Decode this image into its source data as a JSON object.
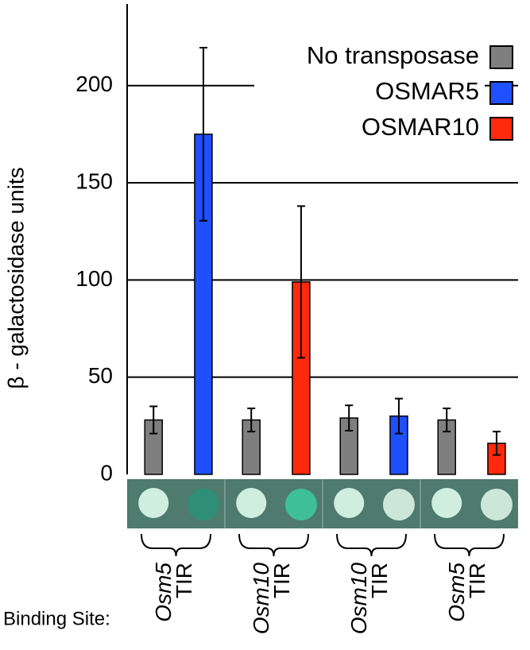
{
  "chart_data": {
    "type": "bar",
    "y_label": "β - galactosidase units",
    "x_label": "Binding Site:",
    "categories": [
      [
        "Osm5",
        "TIR"
      ],
      [
        "Osm10",
        "TIR"
      ],
      [
        "Osm10",
        "TIR"
      ],
      [
        "Osm5",
        "TIR"
      ]
    ],
    "series": [
      {
        "name": "No transposase",
        "color": "#7f7f7f",
        "values": [
          28,
          28,
          29,
          28
        ],
        "errors": [
          7,
          6,
          6.5,
          6
        ]
      },
      {
        "name": "OSMAR5",
        "color": "#1f4fff",
        "values": [
          175,
          null,
          30,
          null
        ],
        "errors": [
          44.5,
          null,
          9,
          null
        ]
      },
      {
        "name": "OSMAR10",
        "color": "#ff2a0d",
        "values": [
          null,
          99,
          null,
          16
        ],
        "errors": [
          null,
          39,
          null,
          6
        ]
      }
    ],
    "ylim": [
      0,
      242
    ],
    "yticks": [
      0,
      50,
      100,
      150,
      200
    ],
    "grid": true,
    "legend": "top-right"
  }
}
